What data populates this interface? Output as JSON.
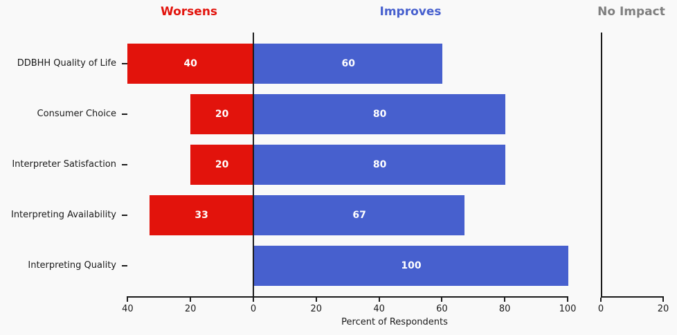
{
  "header": {
    "worsens": "Worsens",
    "improves": "Improves",
    "no_impact": "No Impact"
  },
  "colors": {
    "worsens": "#e2130c",
    "improves": "#4760ce",
    "no_impact_title": "#7f7f7f",
    "background": "#f9f9f9",
    "axis": "#1a1a1a",
    "bar_value_text": "#ffffff"
  },
  "chart_data": {
    "type": "bar",
    "orientation": "horizontal-diverging",
    "title": "",
    "xlabel": "Percent of Respondents",
    "categories": [
      "DDBHH Quality of Life",
      "Consumer Choice",
      "Interpreter Satisfaction",
      "Interpreting Availability",
      "Interpreting Quality"
    ],
    "series": [
      {
        "name": "Worsens",
        "direction": "left",
        "color": "#e2130c",
        "values": [
          40,
          20,
          20,
          33,
          0
        ]
      },
      {
        "name": "Improves",
        "direction": "right",
        "color": "#4760ce",
        "values": [
          60,
          80,
          80,
          67,
          100
        ]
      },
      {
        "name": "No Impact",
        "axis": "secondary",
        "color": "#7f7f7f",
        "values": [
          0,
          0,
          0,
          0,
          0
        ]
      }
    ],
    "bar_value_labels_shown": true,
    "main_axis": {
      "tick_labels": [
        "40",
        "20",
        "0",
        "20",
        "40",
        "60",
        "80",
        "100"
      ],
      "tick_values": [
        -40,
        -20,
        0,
        20,
        40,
        60,
        80,
        100
      ],
      "xlim": [
        -40,
        100
      ]
    },
    "secondary_axis": {
      "tick_labels": [
        "0",
        "20"
      ],
      "tick_values": [
        0,
        20
      ],
      "xlim": [
        0,
        20
      ]
    },
    "grid": false,
    "legend": "none"
  }
}
